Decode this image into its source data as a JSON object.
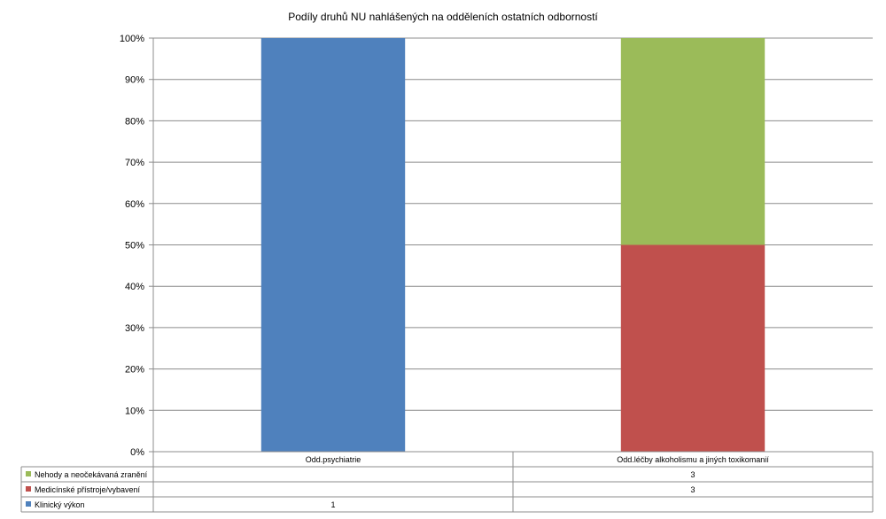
{
  "chart_data": {
    "type": "bar",
    "stacked": true,
    "percent_stacked": true,
    "title": "Podíly druhů NU  nahlášených na odděleních ostatních odborností",
    "xlabel": "",
    "ylabel": "",
    "ylim": [
      0,
      100
    ],
    "y_ticks": [
      "0%",
      "10%",
      "20%",
      "30%",
      "40%",
      "50%",
      "60%",
      "70%",
      "80%",
      "90%",
      "100%"
    ],
    "grid": true,
    "legend": "bottom data table",
    "categories": [
      "Odd.psychiatrie",
      "Odd.léčby alkoholismu a jiných toxikomanií"
    ],
    "series": [
      {
        "name": "Klinický výkon",
        "values": [
          1,
          0
        ],
        "labels": [
          "1",
          ""
        ],
        "color": "#4F81BD"
      },
      {
        "name": "Medicínské přístroje/vybavení",
        "values": [
          0,
          3
        ],
        "labels": [
          "",
          "3"
        ],
        "color": "#C0504D"
      },
      {
        "name": "Nehody a neočekávaná zranění",
        "values": [
          0,
          3
        ],
        "labels": [
          "",
          "3"
        ],
        "color": "#9BBB59"
      }
    ]
  }
}
